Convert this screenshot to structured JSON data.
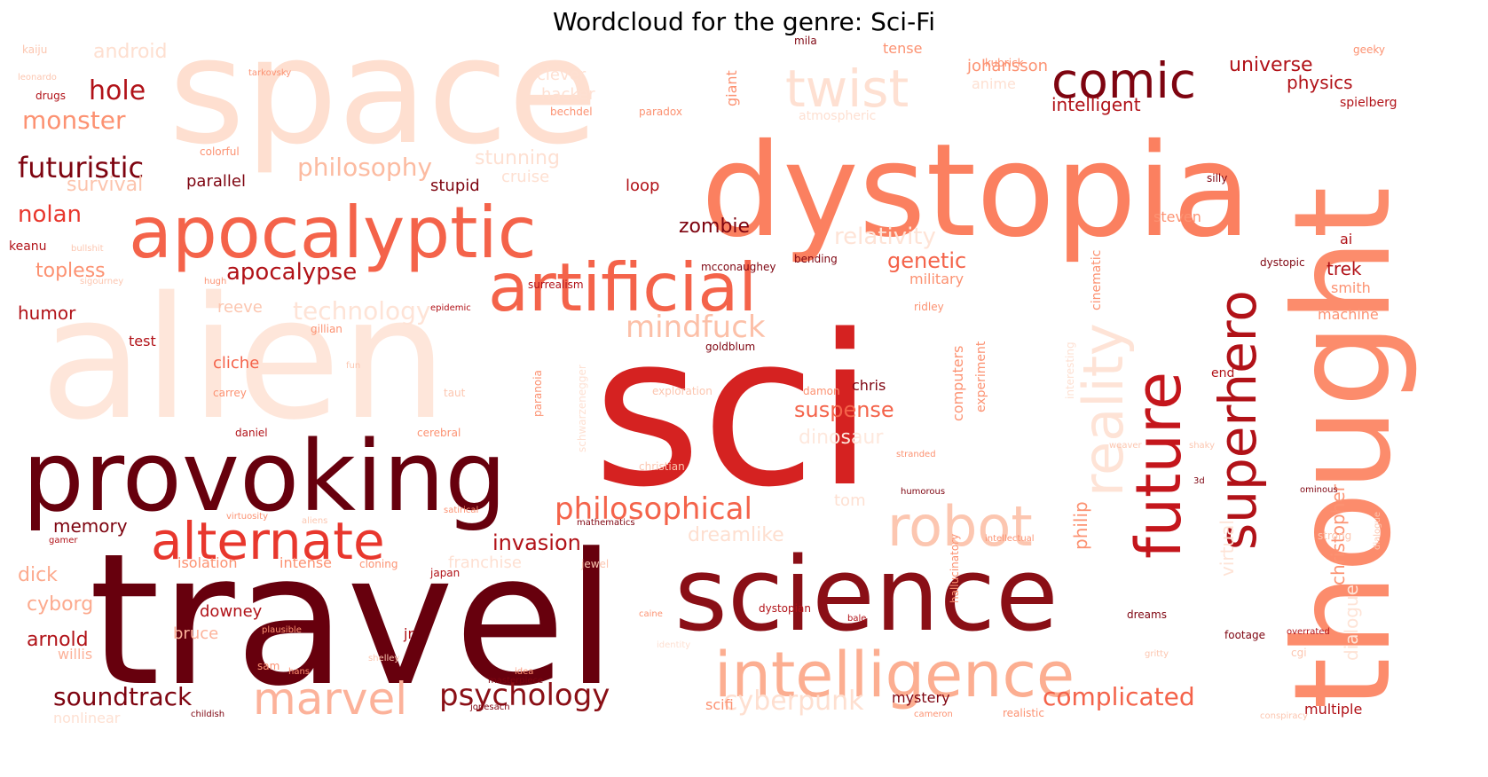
{
  "title": "Wordcloud for the genre: Sci-Fi",
  "palette": {
    "deepest": "#67000d",
    "dark": "#8a0f16",
    "red": "#d52221",
    "mid": "#f4634a",
    "salmon": "#fc8a6a",
    "light": "#fcb59a",
    "pale": "#fedfd0",
    "palest": "#fee8dd"
  },
  "words": [
    {
      "text": "sci",
      "color": "#d52221"
    },
    {
      "text": "travel",
      "color": "#67000d"
    },
    {
      "text": "space",
      "color": "#fedfd0"
    },
    {
      "text": "alien",
      "color": "#fee6da"
    },
    {
      "text": "dystopia",
      "color": "#fb8060"
    },
    {
      "text": "science",
      "color": "#8a0f16"
    },
    {
      "text": "thought",
      "color": "#fc8c6c"
    },
    {
      "text": "provoking",
      "color": "#67000d"
    },
    {
      "text": "apocalyptic",
      "color": "#f4634a"
    },
    {
      "text": "artificial",
      "color": "#f4634a"
    },
    {
      "text": "intelligence",
      "color": "#fcae91"
    },
    {
      "text": "future",
      "color": "#c4161c"
    },
    {
      "text": "superhero",
      "color": "#b11218"
    },
    {
      "text": "reality",
      "color": "#fee3d6"
    },
    {
      "text": "robot",
      "color": "#fcc6b0"
    },
    {
      "text": "alternate",
      "color": "#e8372d"
    },
    {
      "text": "comic",
      "color": "#7e0410"
    },
    {
      "text": "twist",
      "color": "#fee0d2"
    },
    {
      "text": "marvel",
      "color": "#fcb29a"
    },
    {
      "text": "philosophical",
      "color": "#f4634a"
    },
    {
      "text": "psychology",
      "color": "#8a0f16"
    },
    {
      "text": "soundtrack",
      "color": "#7e0410"
    },
    {
      "text": "futuristic",
      "color": "#7e0410"
    },
    {
      "text": "hole",
      "color": "#b11218"
    },
    {
      "text": "monster",
      "color": "#fc9272"
    },
    {
      "text": "mindfuck",
      "color": "#fcc0a8"
    },
    {
      "text": "cyberpunk",
      "color": "#fedfd0"
    },
    {
      "text": "complicated",
      "color": "#f4634a"
    },
    {
      "text": "universe",
      "color": "#b11218"
    },
    {
      "text": "physics",
      "color": "#b11218"
    },
    {
      "text": "intelligent",
      "color": "#b11218"
    },
    {
      "text": "philosophy",
      "color": "#fcbba1"
    },
    {
      "text": "technology",
      "color": "#fee3d6"
    },
    {
      "text": "apocalypse",
      "color": "#b11218"
    },
    {
      "text": "relativity",
      "color": "#fee3d6"
    },
    {
      "text": "genetic",
      "color": "#f4634a"
    },
    {
      "text": "zombie",
      "color": "#7e0410"
    },
    {
      "text": "suspense",
      "color": "#f4634a"
    },
    {
      "text": "dinosaur",
      "color": "#fee8dd"
    },
    {
      "text": "invasion",
      "color": "#b11218"
    },
    {
      "text": "dreamlike",
      "color": "#fedfd0"
    },
    {
      "text": "nolan",
      "color": "#e8372d"
    },
    {
      "text": "survival",
      "color": "#fcc4ad"
    },
    {
      "text": "android",
      "color": "#fedfd0"
    },
    {
      "text": "topless",
      "color": "#fc9272"
    },
    {
      "text": "humor",
      "color": "#b11218"
    },
    {
      "text": "dick",
      "color": "#fcaa8e"
    },
    {
      "text": "cyborg",
      "color": "#fcaa8e"
    },
    {
      "text": "arnold",
      "color": "#b11218"
    },
    {
      "text": "memory",
      "color": "#7e0410"
    },
    {
      "text": "stunning",
      "color": "#fee0d2"
    },
    {
      "text": "cruise",
      "color": "#fee0d2"
    },
    {
      "text": "stupid",
      "color": "#7e0410"
    },
    {
      "text": "parallel",
      "color": "#7e0410"
    },
    {
      "text": "loop",
      "color": "#b11218"
    },
    {
      "text": "clever",
      "color": "#fee0d2"
    },
    {
      "text": "hacker",
      "color": "#fee0d2"
    },
    {
      "text": "anime",
      "color": "#fee0d2"
    },
    {
      "text": "tense",
      "color": "#fc9272"
    },
    {
      "text": "johansson",
      "color": "#fc9272"
    },
    {
      "text": "giant",
      "color": "#fc9272"
    },
    {
      "text": "christopher",
      "color": "#fc9272"
    },
    {
      "text": "dialogue",
      "color": "#fee3d6"
    },
    {
      "text": "virtual",
      "color": "#fee3d6"
    },
    {
      "text": "philip",
      "color": "#fc9272"
    },
    {
      "text": "computers",
      "color": "#fc9272"
    },
    {
      "text": "experiment",
      "color": "#fc9272"
    },
    {
      "text": "trek",
      "color": "#b11218"
    },
    {
      "text": "smith",
      "color": "#fc9272"
    },
    {
      "text": "machine",
      "color": "#fc9272"
    },
    {
      "text": "steven",
      "color": "#fc9272"
    },
    {
      "text": "ai",
      "color": "#b11218"
    },
    {
      "text": "spielberg",
      "color": "#b11218"
    },
    {
      "text": "chris",
      "color": "#7e0410"
    },
    {
      "text": "military",
      "color": "#fc9272"
    },
    {
      "text": "cliche",
      "color": "#f4634a"
    },
    {
      "text": "test",
      "color": "#b11218"
    },
    {
      "text": "reeve",
      "color": "#fcc6b0"
    },
    {
      "text": "isolation",
      "color": "#fc9272"
    },
    {
      "text": "intense",
      "color": "#fc9272"
    },
    {
      "text": "franchise",
      "color": "#fee0d2"
    },
    {
      "text": "downey",
      "color": "#b11218"
    },
    {
      "text": "bruce",
      "color": "#fcb29a"
    },
    {
      "text": "willis",
      "color": "#fcb29a"
    },
    {
      "text": "scifi",
      "color": "#fc9272"
    },
    {
      "text": "mystery",
      "color": "#7e0410"
    },
    {
      "text": "tom",
      "color": "#fee0d2"
    },
    {
      "text": "multiple",
      "color": "#b11218"
    },
    {
      "text": "nonlinear",
      "color": "#fee0d2"
    },
    {
      "text": "cinematic",
      "color": "#fc9272"
    },
    {
      "text": "interesting",
      "color": "#fee0d2"
    },
    {
      "text": "end",
      "color": "#b11218"
    },
    {
      "text": "keanu",
      "color": "#b11218"
    },
    {
      "text": "mila",
      "color": "#7e0410"
    },
    {
      "text": "hallucinatory",
      "color": "#fc9272"
    },
    {
      "text": "schwarzenegger",
      "color": "#fee0d2"
    },
    {
      "text": "exploration",
      "color": "#fcc6b0"
    },
    {
      "text": "christian",
      "color": "#fcc6b0"
    },
    {
      "text": "paranoia",
      "color": "#fc9272"
    },
    {
      "text": "mcconaughey",
      "color": "#7e0410"
    },
    {
      "text": "surrealism",
      "color": "#b11218"
    },
    {
      "text": "goldblum",
      "color": "#7e0410"
    },
    {
      "text": "gillian",
      "color": "#fc9272"
    },
    {
      "text": "drugs",
      "color": "#b11218"
    },
    {
      "text": "kaiju",
      "color": "#fcc6b0"
    },
    {
      "text": "paradox",
      "color": "#fc9272"
    },
    {
      "text": "bechdel",
      "color": "#fc9272"
    },
    {
      "text": "kubrick",
      "color": "#fc9272"
    },
    {
      "text": "geeky",
      "color": "#fc9272"
    },
    {
      "text": "silly",
      "color": "#7e0410"
    },
    {
      "text": "dystopic",
      "color": "#7e0410"
    },
    {
      "text": "dystopian",
      "color": "#b11218"
    },
    {
      "text": "damon",
      "color": "#fc9272"
    },
    {
      "text": "atmospheric",
      "color": "#fee0d2"
    },
    {
      "text": "cerebral",
      "color": "#fc9272"
    },
    {
      "text": "daniel",
      "color": "#b11218"
    },
    {
      "text": "carrey",
      "color": "#fc9272"
    },
    {
      "text": "japan",
      "color": "#b11218"
    },
    {
      "text": "masterpiece",
      "color": "#7e0410"
    },
    {
      "text": "jonesach",
      "color": "#7e0410"
    },
    {
      "text": "childish",
      "color": "#7e0410"
    },
    {
      "text": "footage",
      "color": "#7e0410"
    },
    {
      "text": "overrated",
      "color": "#b11218"
    },
    {
      "text": "realistic",
      "color": "#fc9272"
    },
    {
      "text": "cameron",
      "color": "#fc9272"
    },
    {
      "text": "humorous",
      "color": "#7e0410"
    },
    {
      "text": "stranded",
      "color": "#fc9272"
    },
    {
      "text": "intellectual",
      "color": "#fc9272"
    },
    {
      "text": "mathematics",
      "color": "#7e0410"
    },
    {
      "text": "satirical",
      "color": "#fc9272"
    },
    {
      "text": "gamer",
      "color": "#b11218"
    },
    {
      "text": "aliens",
      "color": "#fcc6b0"
    },
    {
      "text": "cloning",
      "color": "#fc9272"
    },
    {
      "text": "jewel",
      "color": "#fcc6b0"
    },
    {
      "text": "identity",
      "color": "#fee0d2"
    },
    {
      "text": "virtuosity",
      "color": "#fc9272"
    },
    {
      "text": "hugh",
      "color": "#fc9272"
    },
    {
      "text": "bending",
      "color": "#7e0410"
    },
    {
      "text": "ridley",
      "color": "#fc9272"
    },
    {
      "text": "epidemic",
      "color": "#b11218"
    },
    {
      "text": "sigourney",
      "color": "#fcc6b0"
    },
    {
      "text": "bullshit",
      "color": "#fcc6b0"
    },
    {
      "text": "weaver",
      "color": "#fcc6b0"
    },
    {
      "text": "shaky",
      "color": "#fcc6b0"
    },
    {
      "text": "3d",
      "color": "#7e0410"
    },
    {
      "text": "strong",
      "color": "#fcc6b0"
    },
    {
      "text": "dreams",
      "color": "#7e0410"
    },
    {
      "text": "idea",
      "color": "#fc9272"
    },
    {
      "text": "caine",
      "color": "#fc9272"
    },
    {
      "text": "jr",
      "color": "#b11218"
    },
    {
      "text": "sam",
      "color": "#fc9272"
    },
    {
      "text": "hans",
      "color": "#fc9272"
    },
    {
      "text": "plausible",
      "color": "#fc9272"
    },
    {
      "text": "shelley",
      "color": "#fcc6b0"
    },
    {
      "text": "leonardo",
      "color": "#fcc6b0"
    },
    {
      "text": "bale",
      "color": "#b11218"
    },
    {
      "text": "cgi",
      "color": "#fcc6b0"
    },
    {
      "text": "gritty",
      "color": "#fcc6b0"
    },
    {
      "text": "conspiracy",
      "color": "#fcc6b0"
    },
    {
      "text": "fun",
      "color": "#fcc6b0"
    },
    {
      "text": "taut",
      "color": "#fcc6b0"
    },
    {
      "text": "colorful",
      "color": "#fc9272"
    },
    {
      "text": "tarkovsky",
      "color": "#fc9272"
    },
    {
      "text": "ominous",
      "color": "#7e0410"
    },
    {
      "text": "dialogue",
      "color": "#fcc6b0"
    }
  ]
}
